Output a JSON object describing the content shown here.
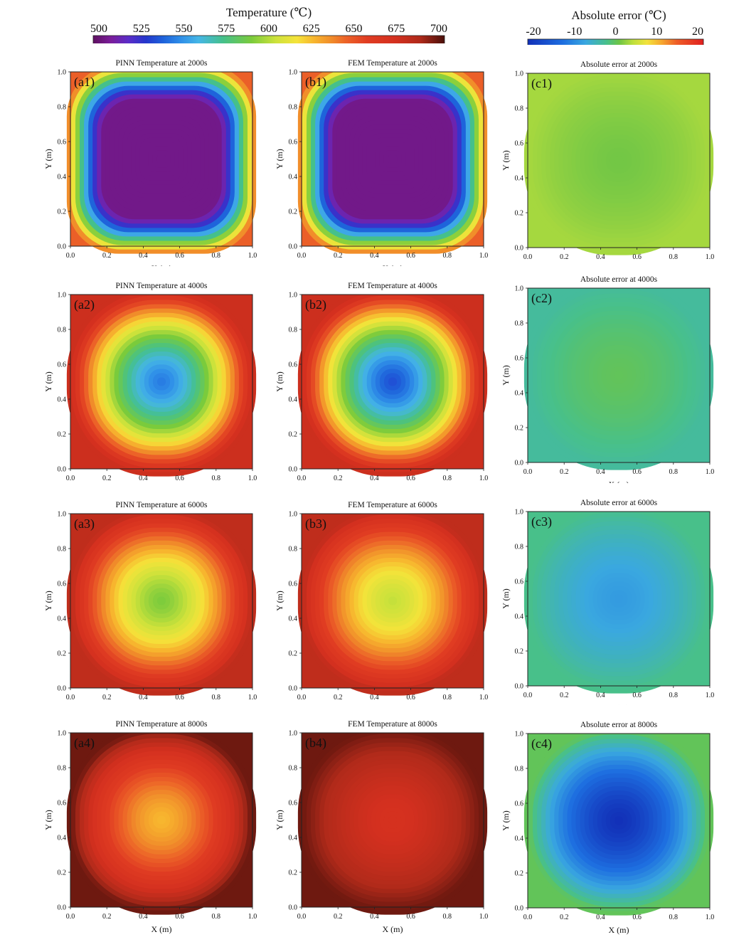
{
  "colorbars": {
    "temperature": {
      "title": "Temperature (℃)",
      "ticks": [
        "500",
        "525",
        "550",
        "575",
        "600",
        "625",
        "650",
        "675",
        "700"
      ],
      "range": [
        500,
        700
      ]
    },
    "error": {
      "title": "Absolute error (℃)",
      "ticks": [
        "-20",
        "-10",
        "0",
        "10",
        "20"
      ],
      "range": [
        -20,
        20
      ]
    }
  },
  "axes": {
    "xlabel": "X (m)",
    "ylabel": "Y (m)",
    "ticks": [
      "0.0",
      "0.2",
      "0.4",
      "0.6",
      "0.8",
      "1.0"
    ]
  },
  "chart_data": [
    {
      "type": "heatmap",
      "panel": "(a1)",
      "title": "PINN Temperature at 2000s",
      "quantity": "temperature",
      "field": "ring",
      "center_value": 507,
      "corner_value": 645,
      "xlim": [
        0,
        1
      ],
      "ylim": [
        0,
        1
      ]
    },
    {
      "type": "heatmap",
      "panel": "(b1)",
      "title": "FEM Temperature at 2000s",
      "quantity": "temperature",
      "field": "ring",
      "center_value": 507,
      "corner_value": 645,
      "xlim": [
        0,
        1
      ],
      "ylim": [
        0,
        1
      ]
    },
    {
      "type": "heatmap",
      "panel": "(c1)",
      "title": "Absolute error at 2000s",
      "quantity": "error",
      "field": "radial",
      "center_value": 1,
      "edge_value": 3,
      "xlim": [
        0,
        1
      ],
      "ylim": [
        0,
        1
      ]
    },
    {
      "type": "heatmap",
      "panel": "(a2)",
      "title": "PINN Temperature at 4000s",
      "quantity": "temperature",
      "field": "radial",
      "center_value": 545,
      "edge_value": 675,
      "xlim": [
        0,
        1
      ],
      "ylim": [
        0,
        1
      ]
    },
    {
      "type": "heatmap",
      "panel": "(b2)",
      "title": "FEM Temperature at 4000s",
      "quantity": "temperature",
      "field": "radial",
      "center_value": 535,
      "edge_value": 675,
      "xlim": [
        0,
        1
      ],
      "ylim": [
        0,
        1
      ]
    },
    {
      "type": "heatmap",
      "panel": "(c2)",
      "title": "Absolute error at 4000s",
      "quantity": "error",
      "field": "radial",
      "center_value": 0,
      "edge_value": -3,
      "xlim": [
        0,
        1
      ],
      "ylim": [
        0,
        1
      ]
    },
    {
      "type": "heatmap",
      "panel": "(a3)",
      "title": "PINN Temperature at 6000s",
      "quantity": "temperature",
      "field": "radial",
      "center_value": 590,
      "edge_value": 680,
      "xlim": [
        0,
        1
      ],
      "ylim": [
        0,
        1
      ]
    },
    {
      "type": "heatmap",
      "panel": "(b3)",
      "title": "FEM Temperature at 6000s",
      "quantity": "temperature",
      "field": "radial",
      "center_value": 602,
      "edge_value": 680,
      "xlim": [
        0,
        1
      ],
      "ylim": [
        0,
        1
      ]
    },
    {
      "type": "heatmap",
      "panel": "(c3)",
      "title": "Absolute error at 6000s",
      "quantity": "error",
      "field": "radial",
      "center_value": -8,
      "edge_value": -2,
      "xlim": [
        0,
        1
      ],
      "ylim": [
        0,
        1
      ]
    },
    {
      "type": "heatmap",
      "panel": "(a4)",
      "title": "PINN Temperature at 8000s",
      "quantity": "temperature",
      "field": "radial",
      "center_value": 625,
      "edge_value": 695,
      "xlim": [
        0,
        1
      ],
      "ylim": [
        0,
        1
      ]
    },
    {
      "type": "heatmap",
      "panel": "(b4)",
      "title": "FEM Temperature at 8000s",
      "quantity": "temperature",
      "field": "radial",
      "center_value": 670,
      "edge_value": 695,
      "xlim": [
        0,
        1
      ],
      "ylim": [
        0,
        1
      ]
    },
    {
      "type": "heatmap",
      "panel": "(c4)",
      "title": "Absolute error at 8000s",
      "quantity": "error",
      "field": "radial",
      "center_value": -20,
      "edge_value": 0,
      "xlim": [
        0,
        1
      ],
      "ylim": [
        0,
        1
      ]
    }
  ]
}
